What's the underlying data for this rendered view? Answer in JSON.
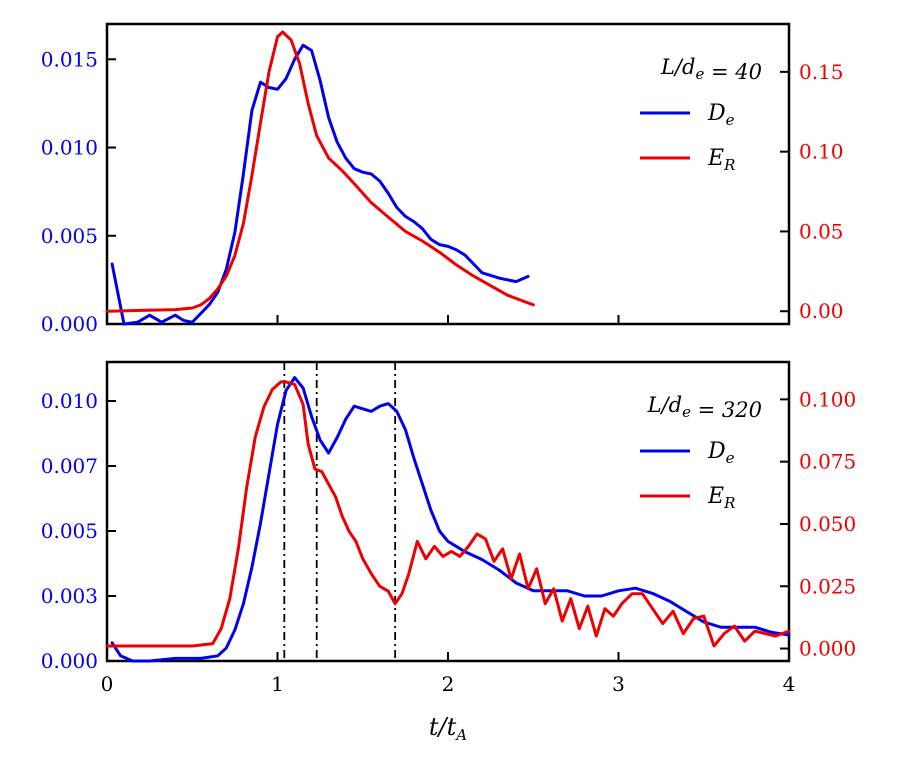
{
  "colors": {
    "de": "#0000ee",
    "er": "#ee0000",
    "marker": "#000000"
  },
  "chart_data": [
    {
      "type": "line",
      "panel": "top",
      "xlim": [
        0,
        4
      ],
      "ylim_left": [
        0,
        0.017
      ],
      "ylim_right": [
        -0.008,
        0.18
      ],
      "left_ticks": [
        0,
        0.005,
        0.01,
        0.015
      ],
      "left_tick_labels": [
        "0.000",
        "0.005",
        "0.010",
        "0.015"
      ],
      "right_ticks": [
        0,
        0.05,
        0.1,
        0.15
      ],
      "right_tick_labels": [
        "0.00",
        "0.05",
        "0.10",
        "0.15"
      ],
      "legend": {
        "title": "L/d_e = 40",
        "entries": [
          "D_e",
          "E_R"
        ],
        "placement": "top-right"
      },
      "series": [
        {
          "name": "D_e",
          "axis": "left",
          "x": [
            0.03,
            0.1,
            0.18,
            0.25,
            0.32,
            0.4,
            0.45,
            0.5,
            0.55,
            0.6,
            0.65,
            0.7,
            0.75,
            0.8,
            0.85,
            0.9,
            0.95,
            1.0,
            1.05,
            1.1,
            1.15,
            1.2,
            1.25,
            1.3,
            1.35,
            1.4,
            1.45,
            1.5,
            1.55,
            1.6,
            1.65,
            1.7,
            1.75,
            1.8,
            1.85,
            1.9,
            1.95,
            2.0,
            2.05,
            2.1,
            2.15,
            2.2,
            2.3,
            2.4,
            2.47
          ],
          "y": [
            0.0034,
            0.0,
            0.0001,
            0.0005,
            0.0001,
            0.0005,
            0.0002,
            0.0001,
            0.0006,
            0.0011,
            0.0018,
            0.0031,
            0.0052,
            0.0085,
            0.0121,
            0.0137,
            0.0134,
            0.0133,
            0.0139,
            0.015,
            0.0158,
            0.0155,
            0.0138,
            0.0117,
            0.0103,
            0.0094,
            0.0088,
            0.0086,
            0.0085,
            0.0081,
            0.0074,
            0.0066,
            0.0061,
            0.0058,
            0.0054,
            0.0048,
            0.0045,
            0.0044,
            0.0042,
            0.0039,
            0.0034,
            0.0029,
            0.0026,
            0.0024,
            0.0027
          ]
        },
        {
          "name": "E_R",
          "axis": "right",
          "x": [
            0.0,
            0.2,
            0.4,
            0.5,
            0.55,
            0.6,
            0.65,
            0.7,
            0.75,
            0.8,
            0.85,
            0.9,
            0.95,
            1.0,
            1.03,
            1.08,
            1.13,
            1.18,
            1.23,
            1.3,
            1.38,
            1.45,
            1.55,
            1.65,
            1.75,
            1.85,
            1.95,
            2.05,
            2.15,
            2.25,
            2.35,
            2.45,
            2.5
          ],
          "y": [
            0.0,
            0.0005,
            0.001,
            0.002,
            0.004,
            0.008,
            0.014,
            0.022,
            0.035,
            0.055,
            0.085,
            0.118,
            0.15,
            0.172,
            0.175,
            0.17,
            0.155,
            0.13,
            0.11,
            0.096,
            0.088,
            0.08,
            0.068,
            0.059,
            0.05,
            0.044,
            0.037,
            0.029,
            0.022,
            0.016,
            0.01,
            0.006,
            0.004
          ]
        }
      ]
    },
    {
      "type": "line",
      "panel": "bottom",
      "xlim": [
        0,
        4
      ],
      "ylim_left": [
        0,
        0.0115
      ],
      "ylim_right": [
        -0.005,
        0.115
      ],
      "left_ticks": [
        0,
        0.0025,
        0.005,
        0.0075,
        0.01
      ],
      "left_tick_labels": [
        "0.000",
        "0.003",
        "0.005",
        "0.007",
        "0.010"
      ],
      "right_ticks": [
        0,
        0.025,
        0.05,
        0.075,
        0.1
      ],
      "right_tick_labels": [
        "0.000",
        "0.025",
        "0.050",
        "0.075",
        "0.100"
      ],
      "x_ticks": [
        0,
        1,
        2,
        3,
        4
      ],
      "x_tick_labels": [
        "0",
        "1",
        "2",
        "3",
        "4"
      ],
      "xlabel": "t/t_A",
      "vlines": [
        1.04,
        1.23,
        1.69
      ],
      "legend": {
        "title": "L/d_e = 320",
        "entries": [
          "D_e",
          "E_R"
        ],
        "placement": "top-right"
      },
      "series": [
        {
          "name": "D_e",
          "axis": "left",
          "x": [
            0.03,
            0.08,
            0.15,
            0.25,
            0.4,
            0.55,
            0.65,
            0.7,
            0.75,
            0.8,
            0.85,
            0.9,
            0.95,
            1.0,
            1.05,
            1.1,
            1.15,
            1.2,
            1.25,
            1.3,
            1.35,
            1.4,
            1.45,
            1.5,
            1.55,
            1.6,
            1.65,
            1.7,
            1.75,
            1.8,
            1.85,
            1.9,
            1.95,
            2.0,
            2.1,
            2.2,
            2.3,
            2.4,
            2.5,
            2.6,
            2.7,
            2.8,
            2.9,
            3.0,
            3.1,
            3.2,
            3.3,
            3.4,
            3.5,
            3.6,
            3.7,
            3.8,
            3.9,
            4.0
          ],
          "y": [
            0.0007,
            0.0002,
            0.0,
            0.0,
            0.0001,
            0.0001,
            0.0002,
            0.0005,
            0.0012,
            0.0022,
            0.0036,
            0.0053,
            0.0072,
            0.0091,
            0.0104,
            0.0109,
            0.0105,
            0.0094,
            0.0085,
            0.008,
            0.0086,
            0.0093,
            0.0098,
            0.0097,
            0.0096,
            0.0098,
            0.0099,
            0.0096,
            0.0089,
            0.0078,
            0.0068,
            0.0058,
            0.005,
            0.0046,
            0.0042,
            0.0039,
            0.0035,
            0.003,
            0.0027,
            0.0027,
            0.0027,
            0.0025,
            0.0025,
            0.0027,
            0.0028,
            0.0026,
            0.0023,
            0.0019,
            0.0015,
            0.0013,
            0.0013,
            0.0013,
            0.0011,
            0.001
          ]
        },
        {
          "name": "E_R",
          "axis": "right",
          "x": [
            0.0,
            0.3,
            0.5,
            0.62,
            0.67,
            0.72,
            0.77,
            0.82,
            0.87,
            0.92,
            0.97,
            1.02,
            1.05,
            1.1,
            1.15,
            1.18,
            1.22,
            1.26,
            1.3,
            1.34,
            1.38,
            1.42,
            1.46,
            1.5,
            1.55,
            1.6,
            1.65,
            1.69,
            1.73,
            1.77,
            1.82,
            1.87,
            1.92,
            1.97,
            2.02,
            2.07,
            2.12,
            2.17,
            2.22,
            2.27,
            2.32,
            2.37,
            2.42,
            2.47,
            2.52,
            2.57,
            2.62,
            2.67,
            2.72,
            2.77,
            2.82,
            2.87,
            2.92,
            2.97,
            3.02,
            3.08,
            3.14,
            3.2,
            3.26,
            3.32,
            3.38,
            3.44,
            3.5,
            3.56,
            3.62,
            3.68,
            3.74,
            3.8,
            3.86,
            3.92,
            4.0
          ],
          "y": [
            0.001,
            0.001,
            0.001,
            0.002,
            0.008,
            0.02,
            0.04,
            0.065,
            0.085,
            0.097,
            0.104,
            0.107,
            0.107,
            0.106,
            0.098,
            0.082,
            0.072,
            0.071,
            0.066,
            0.061,
            0.053,
            0.047,
            0.043,
            0.036,
            0.03,
            0.025,
            0.023,
            0.018,
            0.022,
            0.03,
            0.043,
            0.036,
            0.041,
            0.037,
            0.039,
            0.037,
            0.041,
            0.046,
            0.044,
            0.035,
            0.04,
            0.028,
            0.038,
            0.024,
            0.032,
            0.018,
            0.024,
            0.011,
            0.02,
            0.008,
            0.017,
            0.005,
            0.016,
            0.013,
            0.018,
            0.022,
            0.022,
            0.016,
            0.01,
            0.015,
            0.006,
            0.012,
            0.013,
            0.001,
            0.006,
            0.009,
            0.003,
            0.007,
            0.006,
            0.005,
            0.007
          ]
        }
      ]
    }
  ]
}
